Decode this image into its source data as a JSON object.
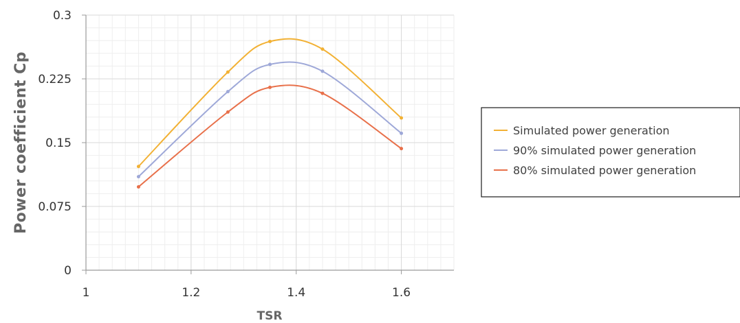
{
  "chart_data": {
    "type": "line",
    "title": "",
    "xlabel": "TSR",
    "ylabel": "Power coefficient Cp",
    "xlim": [
      1,
      1.7
    ],
    "ylim": [
      0,
      0.3
    ],
    "x_ticks": [
      "1",
      "1.2",
      "1.4",
      "1.6"
    ],
    "y_ticks": [
      "0",
      "0.075",
      "0.15",
      "0.225",
      "0.3"
    ],
    "grid": true,
    "legend_position": "right",
    "series": [
      {
        "name": "Simulated power generation",
        "color": "#f2b134",
        "points": [
          [
            1.1,
            0.122
          ],
          [
            1.27,
            0.233
          ],
          [
            1.35,
            0.269
          ],
          [
            1.45,
            0.26
          ],
          [
            1.6,
            0.179
          ]
        ]
      },
      {
        "name": "90% simulated power generation",
        "color": "#9ea8d8",
        "points": [
          [
            1.1,
            0.11
          ],
          [
            1.27,
            0.21
          ],
          [
            1.35,
            0.242
          ],
          [
            1.45,
            0.234
          ],
          [
            1.6,
            0.161
          ]
        ]
      },
      {
        "name": "80% simulated power generation",
        "color": "#e8704a",
        "points": [
          [
            1.1,
            0.098
          ],
          [
            1.27,
            0.186
          ],
          [
            1.35,
            0.215
          ],
          [
            1.45,
            0.208
          ],
          [
            1.6,
            0.143
          ]
        ]
      }
    ]
  }
}
